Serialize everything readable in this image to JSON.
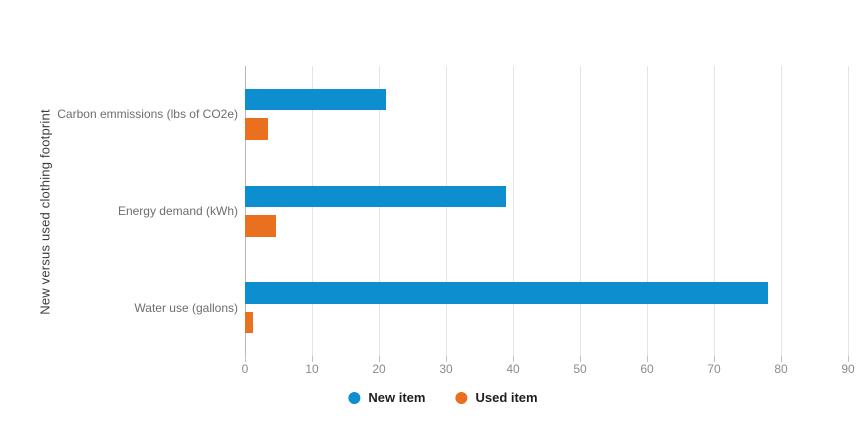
{
  "chart_data": {
    "type": "bar",
    "orientation": "horizontal",
    "axis_title": "New versus used clothing footprint",
    "categories": [
      "Carbon emmissions (lbs of CO2e)",
      "Energy demand (kWh)",
      "Water use (gallons)"
    ],
    "series": [
      {
        "name": "New item",
        "color": "#0d8ecf",
        "values": [
          21,
          39,
          78
        ]
      },
      {
        "name": "Used item",
        "color": "#e8701f",
        "values": [
          3.5,
          4.7,
          1.2
        ]
      }
    ],
    "x_axis": {
      "min": 0,
      "max": 90,
      "tick_step": 10,
      "tick_labels": [
        "0",
        "10",
        "20",
        "30",
        "40",
        "50",
        "60",
        "70",
        "80",
        "90"
      ]
    },
    "grid": true,
    "legend_position": "bottom",
    "styles": {
      "gridline_color": "#e4e4e4",
      "zero_line_color": "#b9b9b9",
      "tick_color": "#c2c2c2",
      "tick_label_color": "#8b8b8b",
      "category_label_color": "#6e6e6e",
      "axis_title_color": "#3d3d3d",
      "legend_text_color": "#1e1e1e"
    }
  }
}
